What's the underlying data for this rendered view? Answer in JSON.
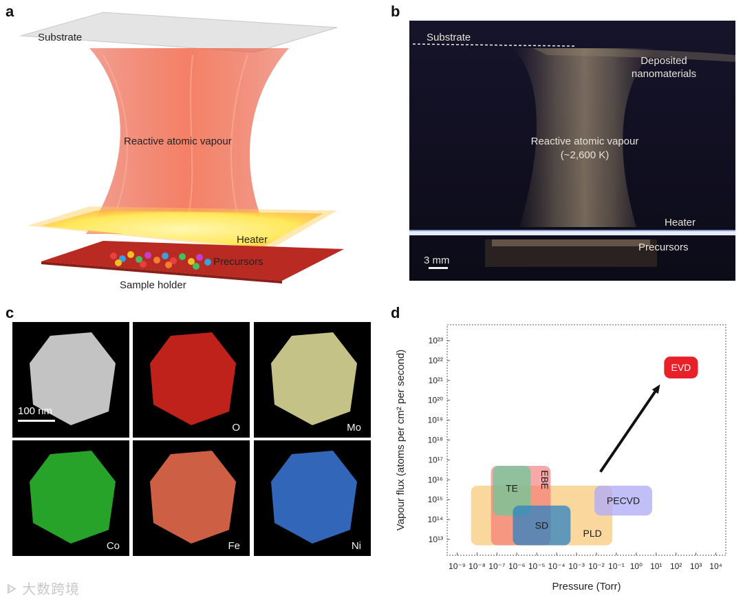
{
  "panels": {
    "a": {
      "label": "a",
      "substrate": "Substrate",
      "vapour": "Reactive atomic vapour",
      "heater": "Heater",
      "precursors": "Precursors",
      "holder": "Sample holder"
    },
    "b": {
      "label": "b",
      "substrate": "Substrate",
      "deposited": "Deposited nanomaterials",
      "vapour_line1": "Reactive atomic vapour",
      "vapour_line2": "(~2,600 K)",
      "heater": "Heater",
      "precursors": "Precursors",
      "scale": "3 mm"
    },
    "c": {
      "label": "c",
      "scale": "100 nm",
      "tiles": [
        {
          "element": "",
          "color": "#d8d8d8"
        },
        {
          "element": "O",
          "color": "#e0281e"
        },
        {
          "element": "Mo",
          "color": "#e8e4a0"
        },
        {
          "element": "Co",
          "color": "#2fc030"
        },
        {
          "element": "Fe",
          "color": "#f07050"
        },
        {
          "element": "Ni",
          "color": "#3a78d8"
        }
      ]
    },
    "d": {
      "label": "d"
    }
  },
  "watermark": "大数跨境",
  "chart_data": {
    "type": "scatter",
    "xlabel": "Pressure (Torr)",
    "ylabel": "Vapour flux (atoms per cm² per second)",
    "x_scale": "log",
    "y_scale": "log",
    "x_ticks": [
      "10⁻⁹",
      "10⁻⁸",
      "10⁻⁷",
      "10⁻⁶",
      "10⁻⁵",
      "10⁻⁴",
      "10⁻³",
      "10⁻²",
      "10⁻¹",
      "10⁰",
      "10¹",
      "10²",
      "10³",
      "10⁴"
    ],
    "y_ticks": [
      "10¹³",
      "10¹⁴",
      "10¹⁵",
      "10¹⁶",
      "10¹⁷",
      "10¹⁸",
      "10¹⁹",
      "10²⁰",
      "10²¹",
      "10²²",
      "10²³"
    ],
    "xlim_exp": [
      -9,
      4
    ],
    "ylim_exp": [
      13,
      23
    ],
    "regions": [
      {
        "name": "PLD",
        "x_exp": [
          -8.3,
          -1.2
        ],
        "y_exp": [
          12.7,
          15.7
        ],
        "color": "#f8c873",
        "opacity": 0.7
      },
      {
        "name": "EBE",
        "x_exp": [
          -7.3,
          -4.3
        ],
        "y_exp": [
          12.7,
          16.7
        ],
        "color": "#f36e6e",
        "opacity": 0.6
      },
      {
        "name": "TE",
        "x_exp": [
          -7.2,
          -5.3
        ],
        "y_exp": [
          14.2,
          16.7
        ],
        "color": "#6ec89a",
        "opacity": 0.75
      },
      {
        "name": "SD",
        "x_exp": [
          -6.2,
          -3.3
        ],
        "y_exp": [
          12.7,
          14.7
        ],
        "color": "#2e82c2",
        "opacity": 0.75
      },
      {
        "name": "PECVD",
        "x_exp": [
          -2.1,
          0.8
        ],
        "y_exp": [
          14.2,
          15.7
        ],
        "color": "#b3aef5",
        "opacity": 0.8
      },
      {
        "name": "EVD",
        "x_exp": [
          1.4,
          3.1
        ],
        "y_exp": [
          21.1,
          22.2
        ],
        "color": "#e8202a",
        "opacity": 1.0
      }
    ],
    "arrow": {
      "from_exp": [
        -1.8,
        16.4
      ],
      "to_exp": [
        1.2,
        20.8
      ]
    },
    "grid": false,
    "legend": "none"
  }
}
